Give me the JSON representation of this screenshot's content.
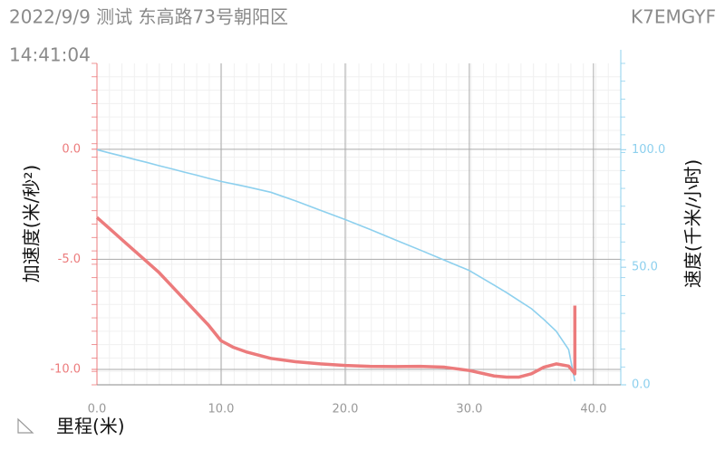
{
  "header": {
    "title": "2022/9/9 测试 东高路73号朝阳区",
    "id": "K7EMGYF",
    "time": "14:41:04"
  },
  "chart_data": {
    "type": "line",
    "ylabel": "加速度(米/秒²)",
    "y2label": "速度(千米/小时)",
    "xlabel": "里程(米)",
    "x": [
      0,
      1,
      2,
      3,
      4,
      5,
      6,
      7,
      8,
      9,
      10,
      11,
      12,
      14,
      16,
      18,
      20,
      22,
      24,
      26,
      28,
      30,
      32,
      33,
      34,
      35,
      36,
      37,
      38,
      38.5,
      38.5
    ],
    "series": [
      {
        "name": "加速度",
        "color": "#ec7b7c",
        "values": [
          -3.1,
          -3.6,
          -4.1,
          -4.6,
          -5.1,
          -5.6,
          -6.2,
          -6.8,
          -7.4,
          -8.0,
          -8.7,
          -9.0,
          -9.2,
          -9.5,
          -9.65,
          -9.75,
          -9.82,
          -9.86,
          -9.87,
          -9.86,
          -9.9,
          -10.05,
          -10.3,
          -10.35,
          -10.35,
          -10.2,
          -9.9,
          -9.75,
          -9.85,
          -10.2,
          -7.1
        ]
      },
      {
        "name": "速度",
        "color": "#8dd0ee",
        "axis": "y2",
        "values": [
          100,
          98.6,
          97.3,
          95.9,
          94.6,
          93.2,
          91.9,
          90.5,
          89.2,
          87.8,
          86.5,
          85.4,
          84.3,
          81.9,
          78.2,
          74.2,
          70.3,
          66.1,
          61.7,
          57.4,
          53.0,
          48.6,
          42.4,
          39.2,
          35.8,
          32.4,
          27.8,
          22.8,
          15,
          1.5,
          null
        ]
      }
    ],
    "xlim": [
      0,
      42.2
    ],
    "xticks": [
      {
        "value": 0,
        "label": "0.0"
      },
      {
        "value": 10,
        "label": "10.0"
      },
      {
        "value": 20,
        "label": "20.0"
      },
      {
        "value": 30,
        "label": "30.0"
      },
      {
        "value": 40,
        "label": "40.0"
      }
    ],
    "ylim": [
      -10.7,
      3.9
    ],
    "yticks": [
      {
        "value": -10,
        "label": "-10.0"
      },
      {
        "value": -5,
        "label": "-5.0"
      },
      {
        "value": 0,
        "label": "0.0"
      }
    ],
    "y2lim": [
      0,
      136.7
    ],
    "y2ticks": [
      {
        "value": 0,
        "label": "0.0"
      },
      {
        "value": 50,
        "label": "50.0"
      },
      {
        "value": 100,
        "label": "100.0"
      }
    ],
    "grid": true
  }
}
